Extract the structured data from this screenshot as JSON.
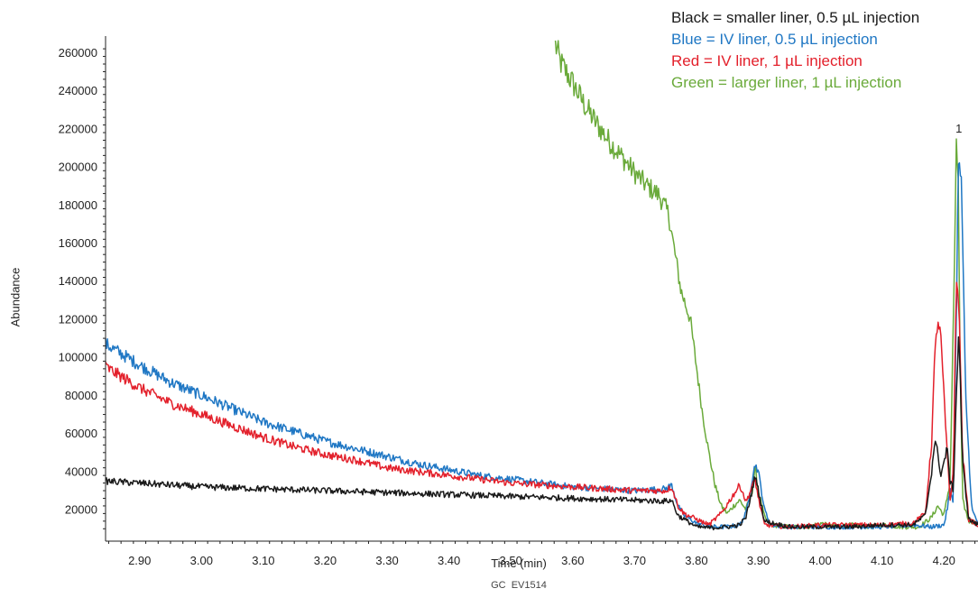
{
  "chart_data": {
    "type": "line",
    "title": "",
    "xlabel": "Time (min)",
    "ylabel": "Abundance",
    "xlim": [
      2.845,
      4.255
    ],
    "ylim": [
      3500,
      263000
    ],
    "x_ticks": [
      2.9,
      3.0,
      3.1,
      3.2,
      3.3,
      3.4,
      3.5,
      3.6,
      3.7,
      3.8,
      3.9,
      4.0,
      4.1,
      4.2
    ],
    "x_tick_labels": [
      "2.90",
      "3.00",
      "3.10",
      "3.20",
      "3.30",
      "3.40",
      "3.50",
      "3.60",
      "3.70",
      "3.80",
      "3.90",
      "4.00",
      "4.10",
      "4.20"
    ],
    "y_ticks": [
      20000,
      40000,
      60000,
      80000,
      100000,
      120000,
      140000,
      160000,
      180000,
      200000,
      220000,
      240000,
      260000
    ],
    "y_tick_labels": [
      "20000",
      "40000",
      "60000",
      "80000",
      "100000",
      "120000",
      "140000",
      "160000",
      "180000",
      "200000",
      "220000",
      "240000",
      "260000"
    ],
    "grid": false,
    "legend_position": "top-right",
    "legend": [
      {
        "text": "Black = smaller liner, 0.5 µL injection",
        "color": "#1a1a1a"
      },
      {
        "text": "Blue = IV liner, 0.5 µL injection",
        "color": "#1f77c4"
      },
      {
        "text": "Red = IV liner, 1 µL injection",
        "color": "#e3202b"
      },
      {
        "text": "Green = larger liner, 1 µL injection",
        "color": "#6aaa3a"
      }
    ],
    "annotations": [
      {
        "text": "1",
        "x": 4.224,
        "y": 218000
      }
    ],
    "series": [
      {
        "color": "#6aaa3a",
        "x": [
          3.572,
          3.58,
          3.6,
          3.62,
          3.64,
          3.66,
          3.68,
          3.7,
          3.72,
          3.74,
          3.755,
          3.765,
          3.775,
          3.79,
          3.8,
          3.81,
          3.82,
          3.83,
          3.84,
          3.85,
          3.86,
          3.87,
          3.88,
          3.89,
          3.895,
          3.9,
          3.91,
          3.92,
          3.95,
          3.98,
          4.0,
          4.02,
          4.05,
          4.08,
          4.1,
          4.13,
          4.16,
          4.18,
          4.19,
          4.2,
          4.21,
          4.217,
          4.22,
          4.223,
          4.226,
          4.23,
          4.24,
          4.255
        ],
        "y": [
          264000,
          255000,
          244000,
          232000,
          222000,
          213000,
          205000,
          197000,
          190000,
          185000,
          175000,
          155000,
          135000,
          120000,
          95000,
          70000,
          50000,
          33000,
          22000,
          18000,
          22000,
          25000,
          20000,
          30000,
          42000,
          30000,
          16000,
          12000,
          11000,
          11000,
          13000,
          11000,
          12000,
          11000,
          12000,
          11000,
          11000,
          16000,
          22000,
          17000,
          35000,
          150000,
          209000,
          195000,
          100000,
          25000,
          14000,
          13000
        ]
      },
      {
        "color": "#1f77c4",
        "x": [
          2.845,
          2.9,
          2.95,
          3.0,
          3.05,
          3.1,
          3.15,
          3.2,
          3.25,
          3.3,
          3.35,
          3.4,
          3.45,
          3.5,
          3.55,
          3.6,
          3.65,
          3.7,
          3.75,
          3.76,
          3.77,
          3.78,
          3.8,
          3.82,
          3.85,
          3.87,
          3.88,
          3.89,
          3.895,
          3.9,
          3.91,
          3.92,
          3.95,
          4.0,
          4.05,
          4.1,
          4.15,
          4.18,
          4.2,
          4.205,
          4.21,
          4.215,
          4.22,
          4.223,
          4.228,
          4.235,
          4.245,
          4.255
        ],
        "y": [
          107000,
          96000,
          87000,
          80000,
          73000,
          66000,
          61000,
          56000,
          52000,
          48000,
          44000,
          41000,
          38000,
          36000,
          34000,
          32000,
          31000,
          30000,
          31000,
          33000,
          22000,
          17000,
          13000,
          11000,
          11000,
          12000,
          18000,
          36000,
          44000,
          40000,
          20000,
          12000,
          11000,
          11000,
          11000,
          11000,
          12000,
          11000,
          12000,
          20000,
          30000,
          25000,
          120000,
          200000,
          195000,
          80000,
          20000,
          13000
        ]
      },
      {
        "color": "#e3202b",
        "x": [
          2.845,
          2.9,
          2.95,
          3.0,
          3.05,
          3.1,
          3.15,
          3.2,
          3.25,
          3.3,
          3.35,
          3.4,
          3.45,
          3.5,
          3.55,
          3.6,
          3.65,
          3.7,
          3.75,
          3.76,
          3.77,
          3.78,
          3.8,
          3.82,
          3.84,
          3.86,
          3.87,
          3.875,
          3.88,
          3.885,
          3.89,
          3.895,
          3.9,
          3.91,
          3.95,
          4.0,
          4.05,
          4.1,
          4.15,
          4.17,
          4.18,
          4.185,
          4.19,
          4.195,
          4.2,
          4.205,
          4.21,
          4.215,
          4.22,
          4.224,
          4.23,
          4.24,
          4.255
        ],
        "y": [
          95000,
          84000,
          76000,
          70000,
          64000,
          58000,
          53000,
          49000,
          46000,
          42000,
          40000,
          38000,
          36000,
          34000,
          33000,
          32000,
          31000,
          30000,
          30000,
          32000,
          22000,
          18000,
          15000,
          12000,
          18000,
          28000,
          33000,
          29000,
          24000,
          28000,
          32000,
          36000,
          26000,
          12000,
          11000,
          12000,
          12000,
          12000,
          13000,
          18000,
          55000,
          100000,
          120000,
          110000,
          80000,
          50000,
          25000,
          40000,
          140000,
          130000,
          50000,
          15000,
          12000
        ]
      },
      {
        "color": "#1a1a1a",
        "x": [
          2.845,
          2.9,
          2.95,
          3.0,
          3.05,
          3.1,
          3.15,
          3.2,
          3.25,
          3.3,
          3.35,
          3.4,
          3.45,
          3.5,
          3.55,
          3.6,
          3.65,
          3.7,
          3.75,
          3.76,
          3.77,
          3.78,
          3.8,
          3.82,
          3.85,
          3.87,
          3.88,
          3.89,
          3.895,
          3.9,
          3.91,
          3.95,
          4.0,
          4.05,
          4.1,
          4.15,
          4.17,
          4.18,
          4.185,
          4.19,
          4.195,
          4.2,
          4.205,
          4.21,
          4.215,
          4.22,
          4.224,
          4.23,
          4.24,
          4.255
        ],
        "y": [
          35000,
          34000,
          33000,
          32000,
          31500,
          31000,
          30500,
          30000,
          29500,
          29000,
          28500,
          28000,
          27500,
          27000,
          26500,
          26000,
          25500,
          25000,
          24500,
          25000,
          17000,
          15000,
          11000,
          10500,
          11000,
          12000,
          16000,
          30000,
          38000,
          30000,
          14000,
          11000,
          11000,
          11000,
          12000,
          12000,
          17000,
          40000,
          56000,
          50000,
          38000,
          45000,
          52000,
          35000,
          30000,
          80000,
          115000,
          45000,
          15000,
          12000
        ]
      }
    ]
  }
}
